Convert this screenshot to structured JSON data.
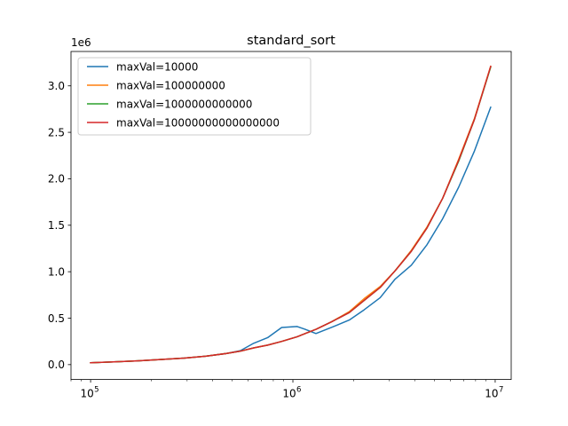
{
  "chart_data": {
    "type": "line",
    "title": "standard_sort",
    "xlabel": "",
    "ylabel": "",
    "x_scale": "log",
    "xlim": [
      80000,
      12000000
    ],
    "ylim": [
      -0.16,
      3.37
    ],
    "y_offset_label": "1e6",
    "x_ticks": [
      {
        "value": 100000,
        "label": "10",
        "exp": "5"
      },
      {
        "value": 1000000,
        "label": "10",
        "exp": "6"
      },
      {
        "value": 10000000,
        "label": "10",
        "exp": "7"
      }
    ],
    "y_ticks": [
      {
        "value": 0.0,
        "label": "0.0"
      },
      {
        "value": 0.5,
        "label": "0.5"
      },
      {
        "value": 1.0,
        "label": "1.0"
      },
      {
        "value": 1.5,
        "label": "1.5"
      },
      {
        "value": 2.0,
        "label": "2.0"
      },
      {
        "value": 2.5,
        "label": "2.5"
      },
      {
        "value": 3.0,
        "label": "3.0"
      }
    ],
    "grid": false,
    "legend_position": "top-left",
    "x": [
      100000,
      130000,
      170000,
      220000,
      290000,
      370000,
      470000,
      550000,
      640000,
      750000,
      880000,
      1050000,
      1150000,
      1300000,
      1550000,
      1900000,
      2250000,
      2700000,
      3200000,
      3850000,
      4600000,
      5500000,
      6600000,
      7900000,
      9500000
    ],
    "series": [
      {
        "name": "maxVal=10000",
        "color": "#1f77b4",
        "values": [
          0.02,
          0.03,
          0.04,
          0.055,
          0.07,
          0.09,
          0.12,
          0.15,
          0.23,
          0.29,
          0.4,
          0.41,
          0.38,
          0.335,
          0.4,
          0.48,
          0.59,
          0.72,
          0.92,
          1.07,
          1.29,
          1.57,
          1.91,
          2.3,
          2.77
        ]
      },
      {
        "name": "maxVal=100000000",
        "color": "#ff7f0e",
        "values": [
          0.02,
          0.03,
          0.04,
          0.055,
          0.07,
          0.09,
          0.12,
          0.145,
          0.18,
          0.21,
          0.25,
          0.3,
          0.335,
          0.38,
          0.46,
          0.57,
          0.71,
          0.84,
          1.01,
          1.23,
          1.48,
          1.79,
          2.21,
          2.65,
          3.21
        ]
      },
      {
        "name": "maxVal=1000000000000",
        "color": "#2ca02c",
        "values": [
          0.02,
          0.03,
          0.04,
          0.055,
          0.07,
          0.09,
          0.12,
          0.145,
          0.18,
          0.21,
          0.25,
          0.3,
          0.335,
          0.38,
          0.46,
          0.56,
          0.69,
          0.83,
          1.01,
          1.22,
          1.47,
          1.79,
          2.19,
          2.64,
          3.2
        ]
      },
      {
        "name": "maxVal=10000000000000000",
        "color": "#d62728",
        "values": [
          0.02,
          0.03,
          0.04,
          0.055,
          0.07,
          0.09,
          0.12,
          0.145,
          0.18,
          0.21,
          0.25,
          0.3,
          0.335,
          0.38,
          0.46,
          0.56,
          0.69,
          0.83,
          1.01,
          1.22,
          1.47,
          1.79,
          2.2,
          2.64,
          3.21
        ]
      }
    ]
  }
}
